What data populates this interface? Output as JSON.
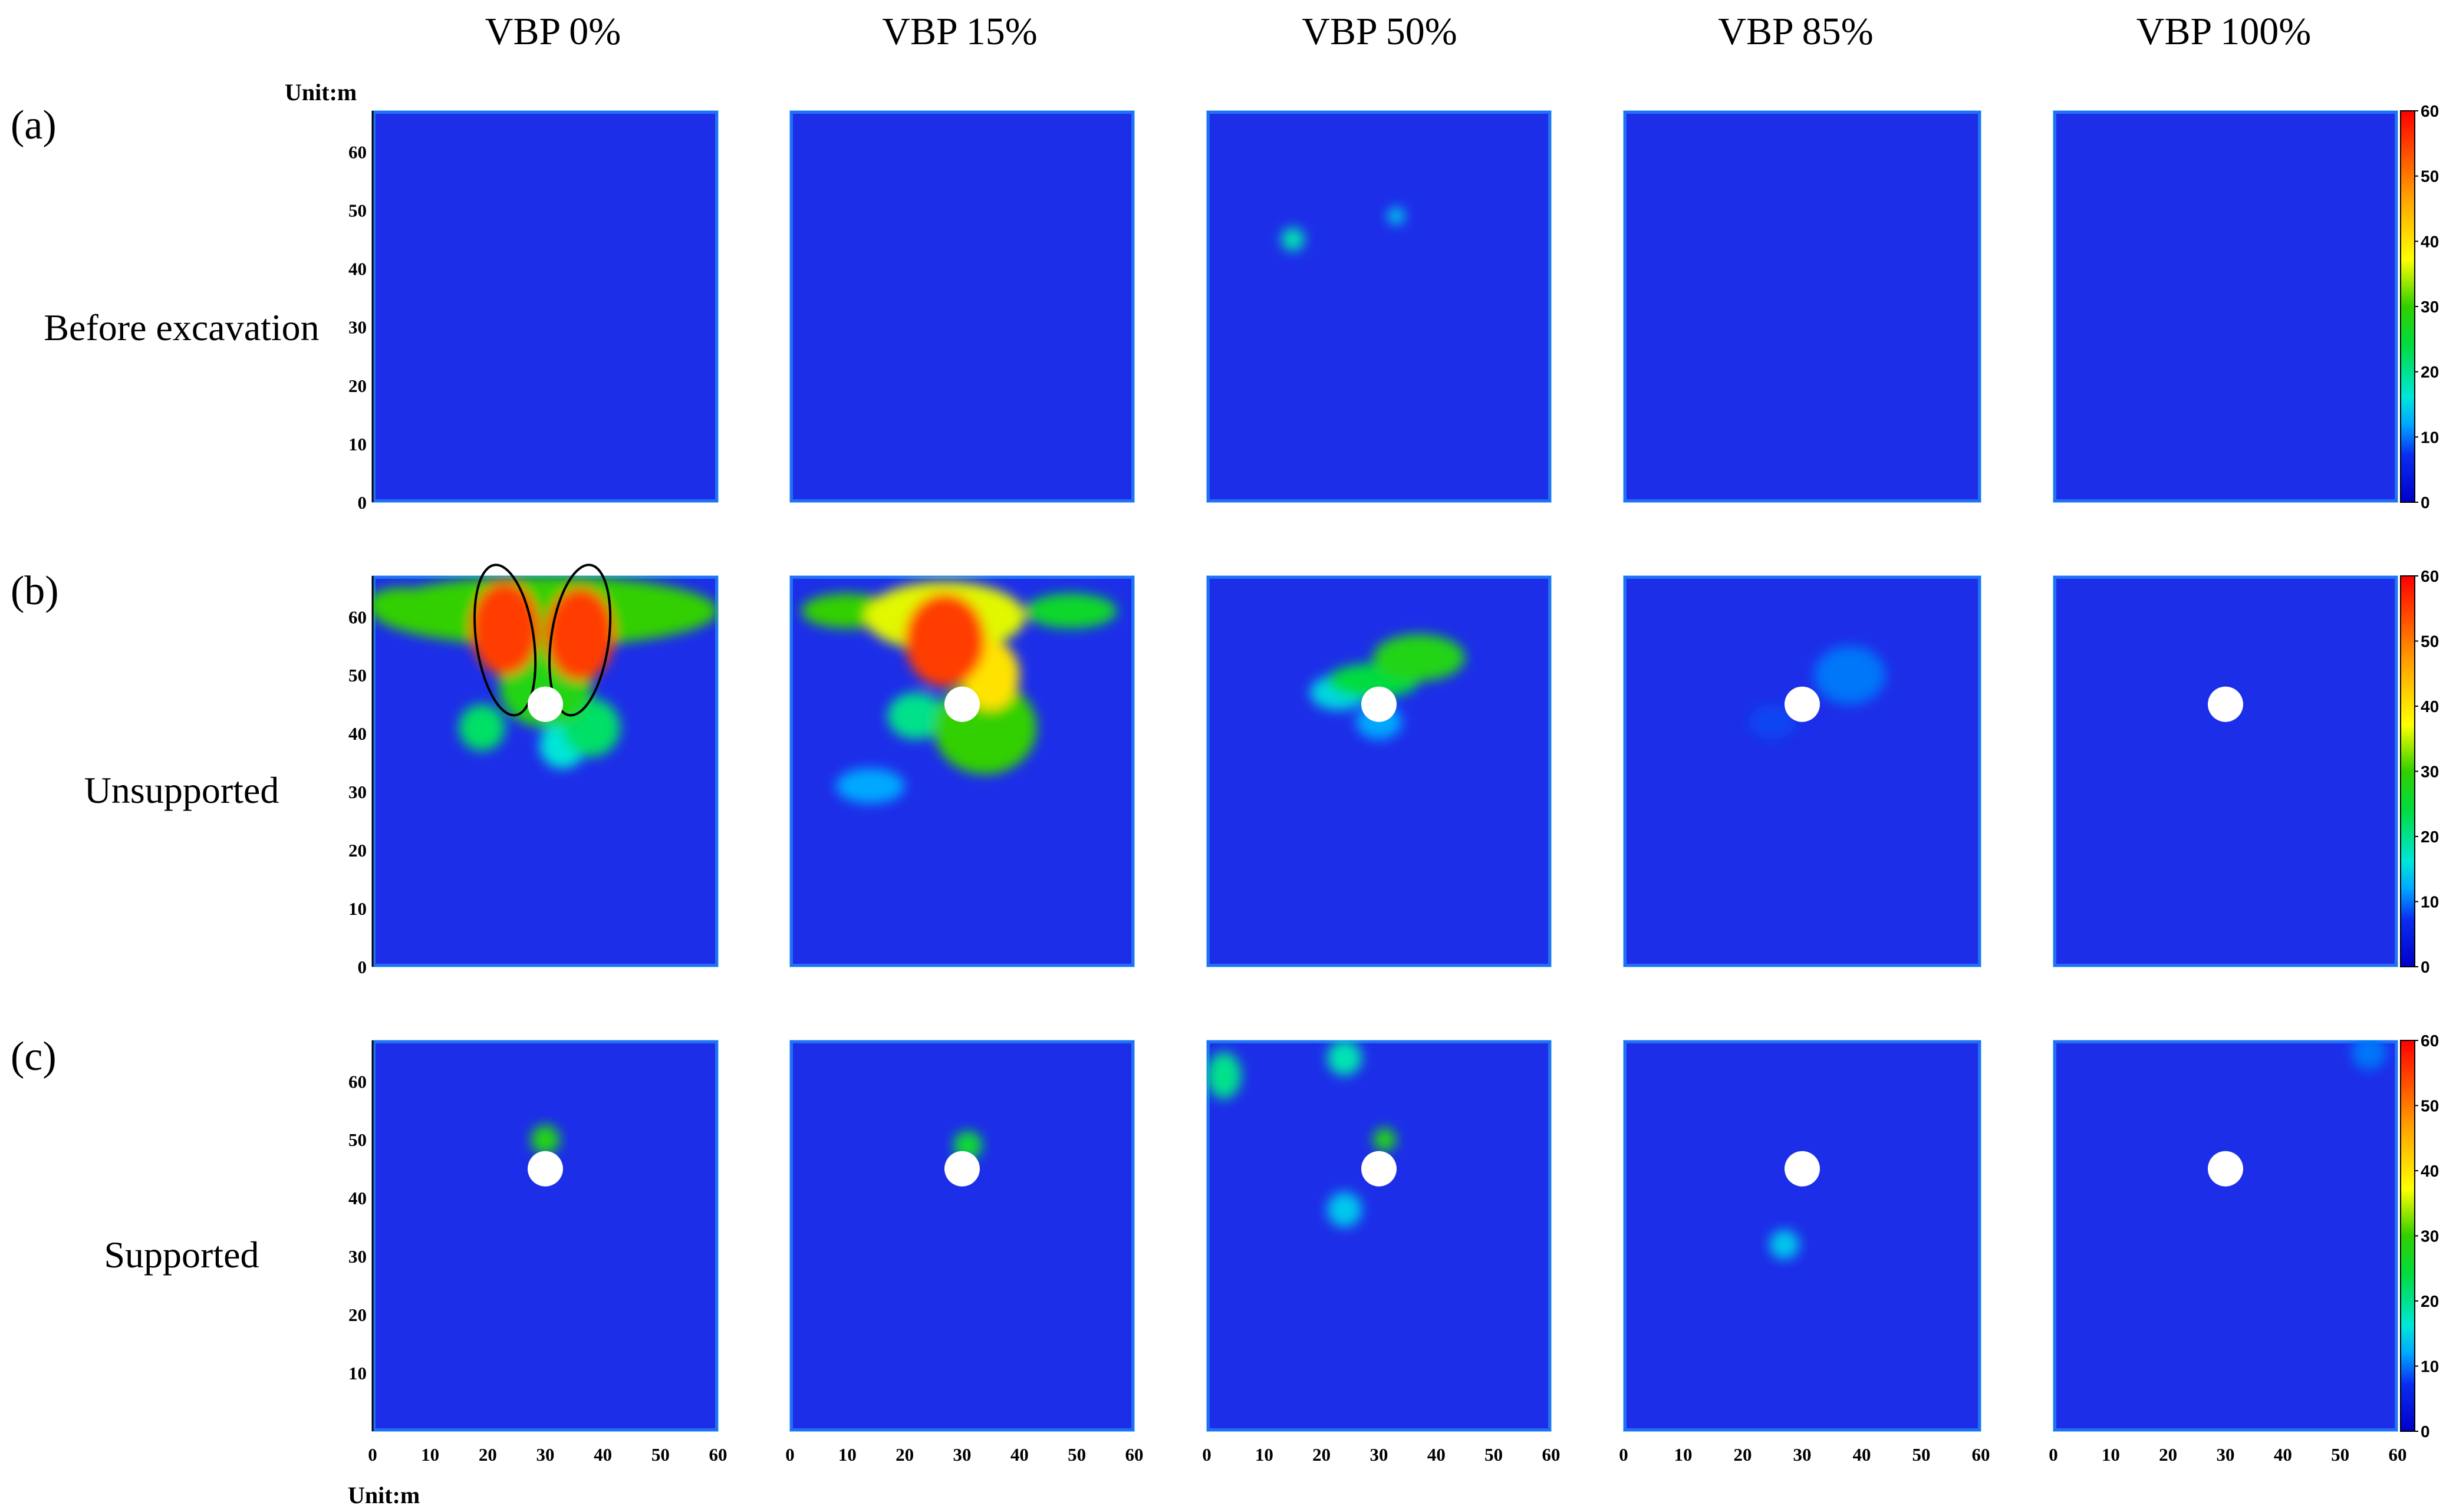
{
  "figure": {
    "column_titles": [
      "VBP 0%",
      "VBP 15%",
      "VBP 50%",
      "VBP 85%",
      "VBP 100%"
    ],
    "rows": [
      {
        "letter": "(a)",
        "label": "Before excavation"
      },
      {
        "letter": "(b)",
        "label": "Unsupported"
      },
      {
        "letter": "(c)",
        "label": "Supported"
      }
    ],
    "top_unit_label": "Unit:m",
    "bottom_unit_label": "Unit:m",
    "colors": {
      "background": "#1c2ee8",
      "colormap": [
        "#0000c8",
        "#0a2cf0",
        "#00c8ff",
        "#00e090",
        "#20d000",
        "#ffff00",
        "#ff9000",
        "#ff0000"
      ],
      "hole": "#ffffff",
      "outline": "#000000"
    }
  },
  "chart_data": {
    "type": "heatmap",
    "description_units": "Unit:m",
    "x_ticks": [
      0,
      10,
      20,
      30,
      40,
      50,
      60
    ],
    "y_ticks": [
      0,
      10,
      20,
      30,
      40,
      50,
      60
    ],
    "xlim": [
      0,
      60
    ],
    "ylim": [
      0,
      67
    ],
    "colorbar": {
      "min": 0,
      "max": 60,
      "ticks": [
        0,
        10,
        20,
        30,
        40,
        50,
        60
      ]
    },
    "tunnel_center": [
      30,
      45
    ],
    "panels": [
      {
        "row": 0,
        "col": 0,
        "hole": false,
        "blobs": []
      },
      {
        "row": 0,
        "col": 1,
        "hole": false,
        "blobs": []
      },
      {
        "row": 0,
        "col": 2,
        "hole": false,
        "blobs": [
          [
            15,
            45,
            2,
            2,
            18
          ],
          [
            33,
            49,
            1.5,
            1.5,
            14
          ]
        ]
      },
      {
        "row": 0,
        "col": 3,
        "hole": false,
        "blobs": []
      },
      {
        "row": 0,
        "col": 4,
        "hole": false,
        "blobs": []
      },
      {
        "row": 1,
        "col": 0,
        "hole": true,
        "outlines": [
          [
            23,
            56,
            5,
            13
          ],
          [
            36,
            56,
            5,
            13
          ]
        ],
        "blobs": [
          [
            30,
            61,
            30,
            6,
            30
          ],
          [
            23,
            58,
            6,
            8,
            55
          ],
          [
            36,
            57,
            6,
            8,
            55
          ],
          [
            30,
            48,
            8,
            7,
            28
          ],
          [
            38,
            41,
            5,
            5,
            22
          ],
          [
            19,
            41,
            4,
            4,
            22
          ],
          [
            33,
            38,
            4,
            4,
            16
          ],
          [
            5,
            62,
            6,
            3,
            30
          ],
          [
            50,
            61,
            8,
            3,
            22
          ]
        ]
      },
      {
        "row": 1,
        "col": 1,
        "hole": true,
        "blobs": [
          [
            27,
            60,
            14,
            6,
            36
          ],
          [
            27,
            56,
            7,
            8,
            55
          ],
          [
            35,
            50,
            5,
            6,
            40
          ],
          [
            34,
            41,
            9,
            8,
            30
          ],
          [
            22,
            43,
            5,
            4,
            20
          ],
          [
            10,
            61,
            8,
            3,
            30
          ],
          [
            49,
            61,
            8,
            3,
            26
          ],
          [
            14,
            31,
            6,
            3,
            12
          ]
        ]
      },
      {
        "row": 1,
        "col": 2,
        "hole": true,
        "blobs": [
          [
            37,
            53,
            8,
            4,
            28
          ],
          [
            29,
            49,
            8,
            3,
            24
          ],
          [
            23,
            47,
            5,
            3,
            15
          ],
          [
            30,
            42,
            4,
            3,
            12
          ]
        ]
      },
      {
        "row": 1,
        "col": 3,
        "hole": true,
        "blobs": [
          [
            38,
            50,
            6,
            5,
            10
          ],
          [
            25,
            42,
            4,
            3,
            8
          ]
        ]
      },
      {
        "row": 1,
        "col": 4,
        "hole": true,
        "blobs": []
      },
      {
        "row": 2,
        "col": 0,
        "hole": true,
        "blobs": [
          [
            30,
            50,
            2.5,
            2.5,
            28
          ]
        ]
      },
      {
        "row": 2,
        "col": 1,
        "hole": true,
        "blobs": [
          [
            31,
            49,
            2.5,
            2.5,
            25
          ]
        ]
      },
      {
        "row": 2,
        "col": 2,
        "hole": true,
        "blobs": [
          [
            24,
            38,
            3,
            3,
            14
          ],
          [
            3,
            61,
            3,
            4,
            20
          ],
          [
            24,
            64,
            3,
            3,
            18
          ],
          [
            31,
            50,
            2,
            2,
            28
          ]
        ]
      },
      {
        "row": 2,
        "col": 3,
        "hole": true,
        "blobs": [
          [
            27,
            32,
            2.5,
            2.5,
            14
          ]
        ]
      },
      {
        "row": 2,
        "col": 4,
        "hole": true,
        "blobs": [
          [
            55,
            65,
            3,
            3,
            10
          ]
        ]
      }
    ]
  }
}
